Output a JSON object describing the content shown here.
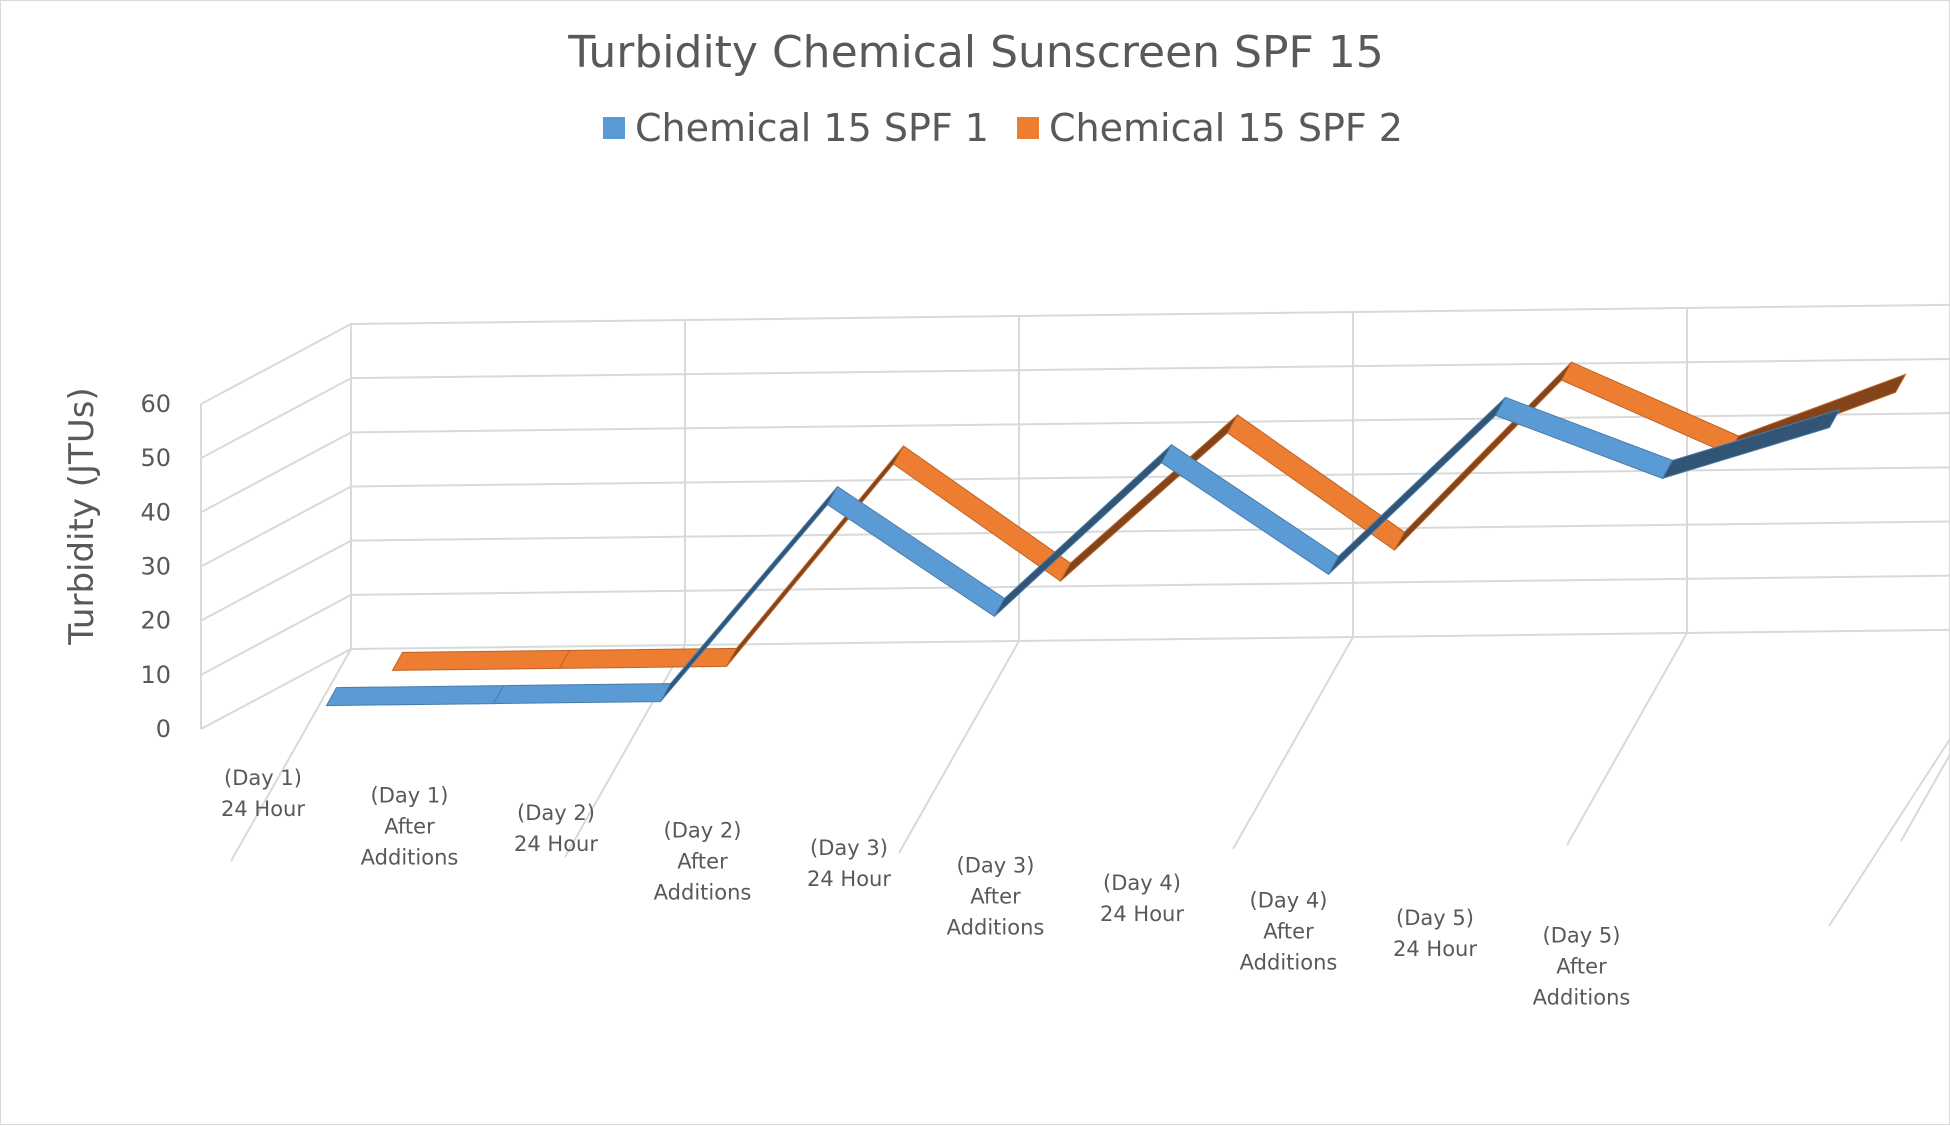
{
  "chart_data": {
    "type": "line",
    "variant": "3d-ribbon",
    "title": "Turbidity Chemical Sunscreen SPF 15",
    "ylabel": "Turbidity (JTUs)",
    "xlabel": "",
    "ylim": [
      0,
      60
    ],
    "yticks": [
      "0",
      "10",
      "20",
      "30",
      "40",
      "50",
      "60"
    ],
    "legend_position": "top",
    "categories": [
      [
        "(Day 1)",
        "24 Hour"
      ],
      [
        "(Day 1)",
        "After",
        "Additions"
      ],
      [
        "(Day 2)",
        "24 Hour"
      ],
      [
        "(Day 2)",
        "After",
        "Additions"
      ],
      [
        "(Day 3)",
        "24 Hour"
      ],
      [
        "(Day 3)",
        "After",
        "Additions"
      ],
      [
        "(Day 4)",
        "24 Hour"
      ],
      [
        "(Day 4)",
        "After",
        "Additions"
      ],
      [
        "(Day 5)",
        "24 Hour"
      ],
      [
        "(Day 5)",
        "After",
        "Additions"
      ]
    ],
    "series": [
      {
        "name": "Chemical 15 SPF 1",
        "color": "#5b9bd5",
        "values": [
          0,
          0,
          0,
          36,
          15,
          43,
          22,
          51,
          39,
          48
        ]
      },
      {
        "name": "Chemical 15 SPF 2",
        "color": "#ed7d31",
        "values": [
          0,
          0,
          0,
          37,
          15,
          42,
          20,
          51,
          37,
          48
        ]
      }
    ]
  }
}
